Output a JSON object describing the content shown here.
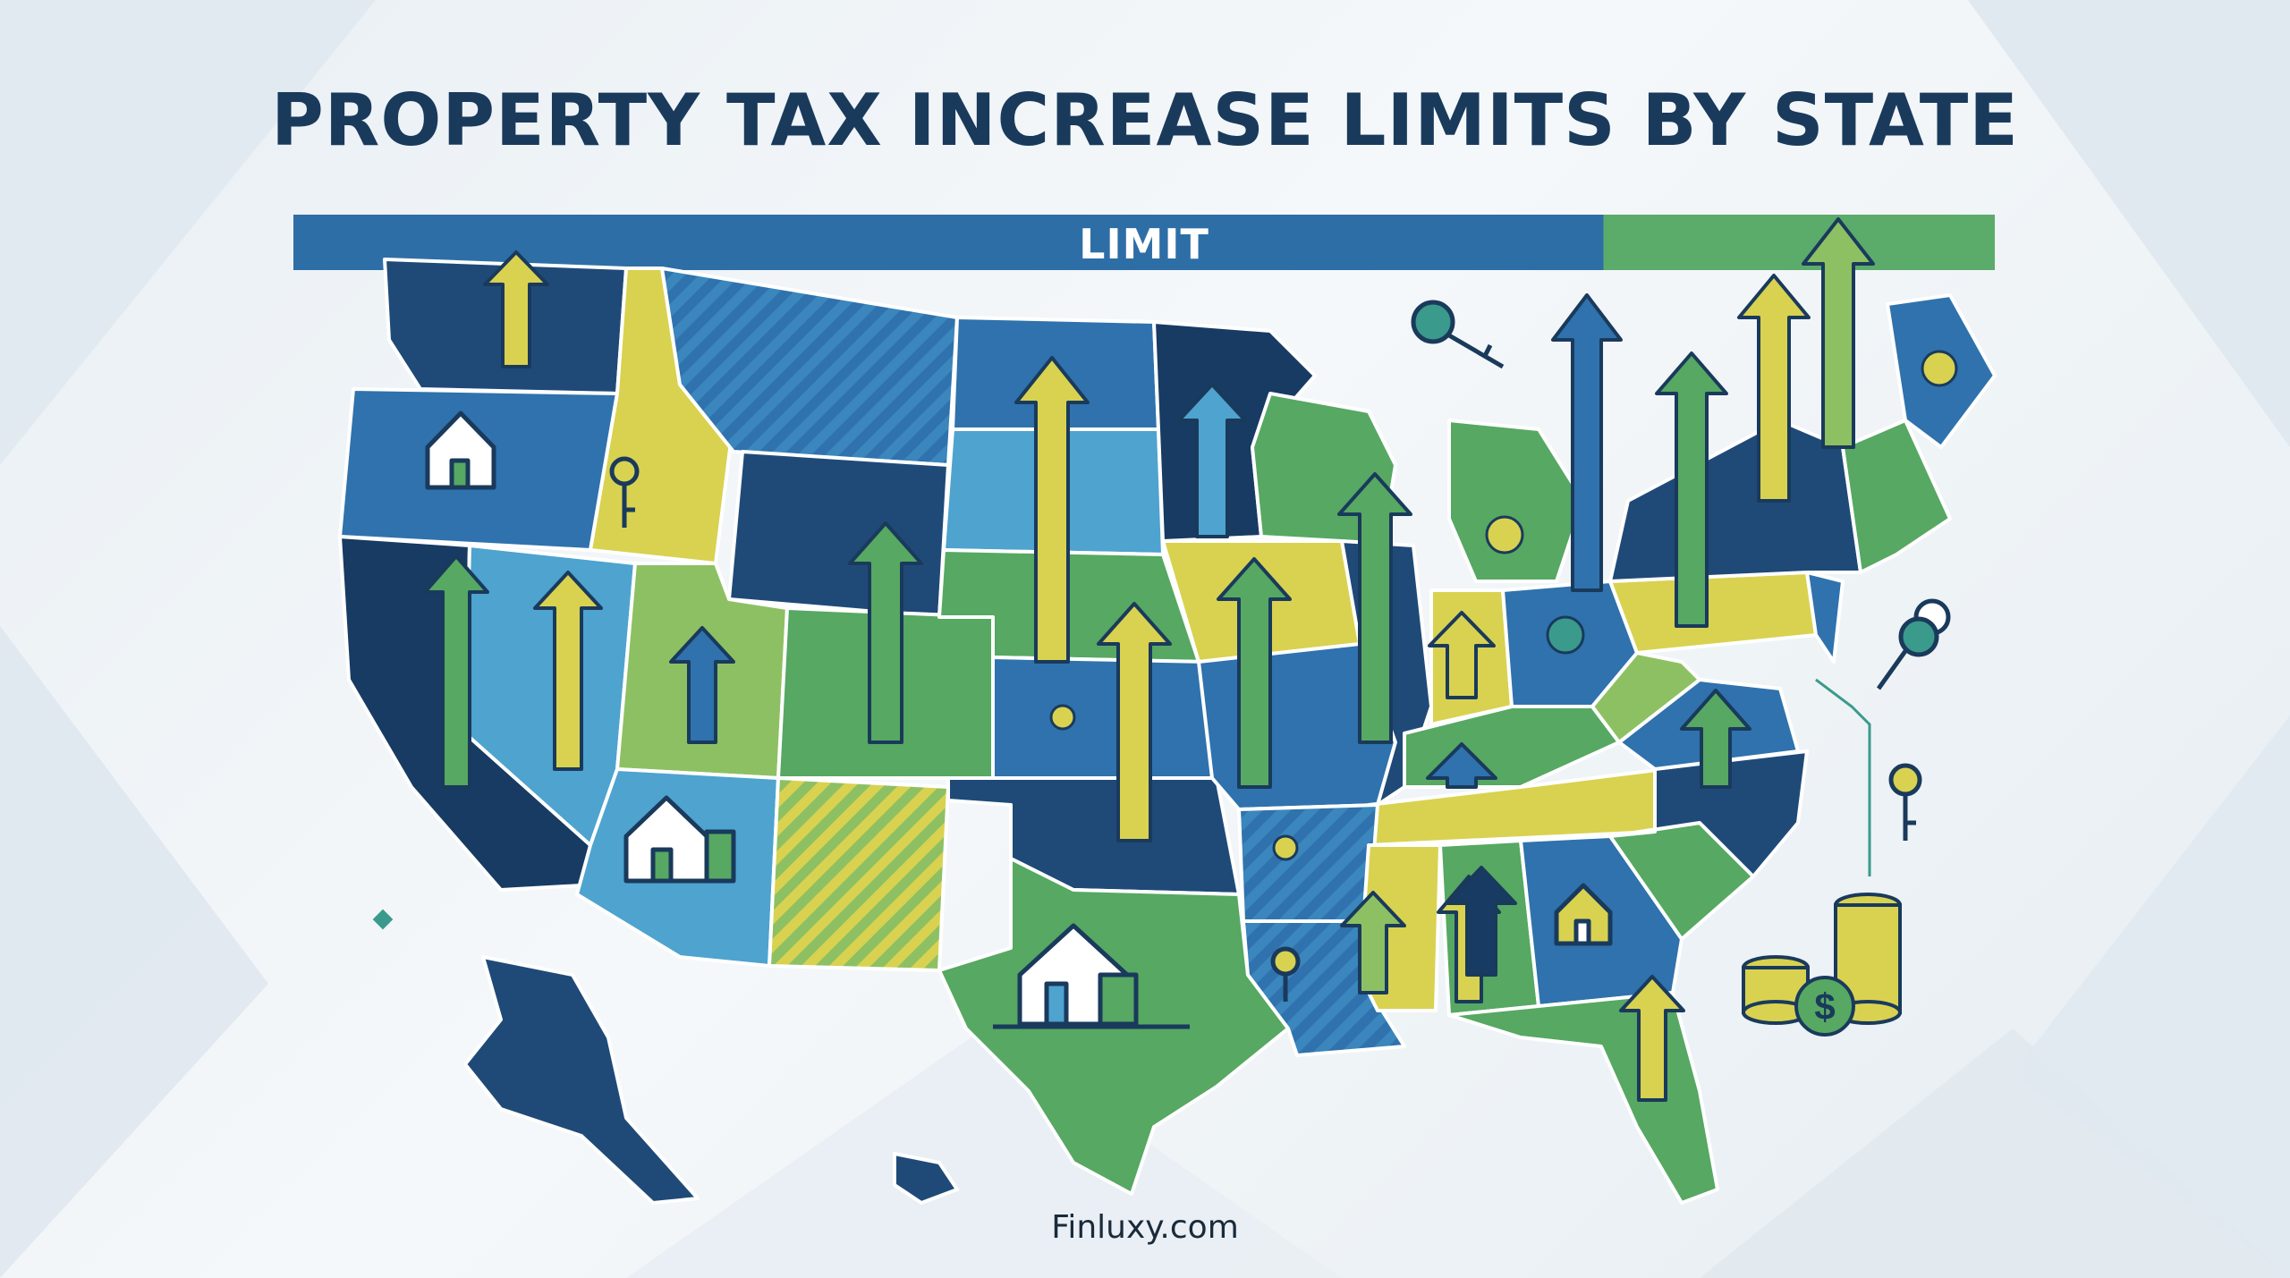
{
  "title": "PROPERTY TAX INCREASE LIMITS BY STATE",
  "bar": {
    "label": "LIMIT"
  },
  "footer": "Finluxy.com",
  "colors": {
    "navy": "#1f4a78",
    "dark_navy": "#173b63",
    "blue": "#2f72ad",
    "light_blue": "#4ea3cf",
    "teal": "#3a9a8c",
    "green": "#56a862",
    "light_green": "#8dc063",
    "yellow": "#d8d250",
    "title_text": "#1a3a5c"
  },
  "icons": [
    "house-icon",
    "key-icon",
    "coin-stack-icon",
    "dollar-icon",
    "up-arrow-icon"
  ]
}
